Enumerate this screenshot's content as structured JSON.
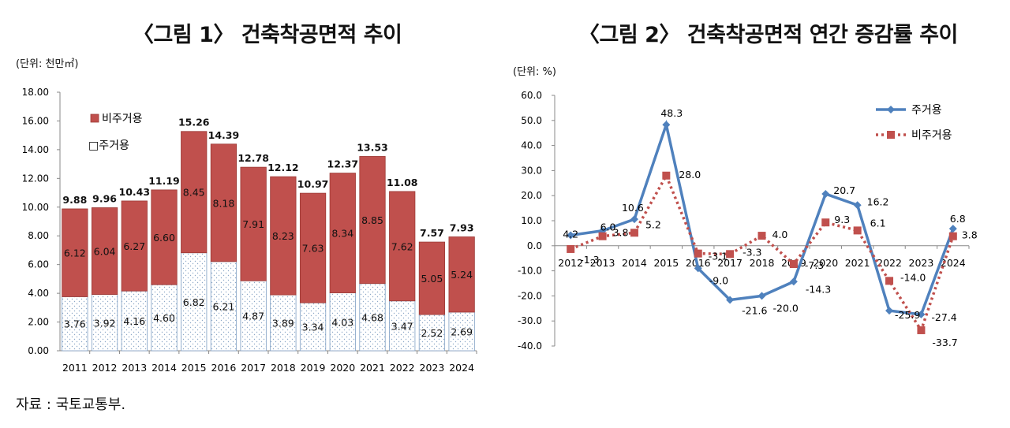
{
  "titles": {
    "chart1": "〈그림 1〉 건축착공면적 추이",
    "chart2": "〈그림 2〉 건축착공면적 연간 증감률 추이"
  },
  "units": {
    "chart1": "(단위: 천만㎡)",
    "chart2": "(단위: %)"
  },
  "source": "자료 : 국토교통부.",
  "colors": {
    "non_residential": "#c0504d",
    "residential_dots": "#8ea9c8",
    "residential_line": "#4f81bd",
    "non_residential_line": "#c0504d"
  },
  "chart_data": [
    {
      "type": "bar",
      "stacked": true,
      "title": "〈그림 1〉 건축착공면적 추이",
      "ylabel": "(단위: 천만㎡)",
      "categories": [
        "2011",
        "2012",
        "2013",
        "2014",
        "2015",
        "2016",
        "2017",
        "2018",
        "2019",
        "2020",
        "2021",
        "2022",
        "2023",
        "2024"
      ],
      "series": [
        {
          "name": "주거용",
          "values": [
            3.76,
            3.92,
            4.16,
            4.6,
            6.82,
            6.21,
            4.87,
            3.89,
            3.34,
            4.03,
            4.68,
            3.47,
            2.52,
            2.69
          ]
        },
        {
          "name": "비주거용",
          "values": [
            6.12,
            6.04,
            6.27,
            6.6,
            8.45,
            8.18,
            7.91,
            8.23,
            7.63,
            8.34,
            8.85,
            7.62,
            5.05,
            5.24
          ]
        }
      ],
      "totals": [
        9.88,
        9.96,
        10.43,
        11.19,
        15.26,
        14.39,
        12.78,
        12.12,
        10.97,
        12.37,
        13.53,
        11.08,
        7.57,
        7.93
      ],
      "value_labels": {
        "주거용": [
          "3.76",
          "3.92",
          "4.16",
          "4.60",
          "6.82",
          "6.21",
          "4.87",
          "3.89",
          "3.34",
          "4.03",
          "4.68",
          "3.47",
          "2.52",
          "2.69"
        ],
        "비주거용": [
          "6.12",
          "6.04",
          "6.27",
          "6.60",
          "8.45",
          "8.18",
          "7.91",
          "8.23",
          "7.63",
          "8.34",
          "8.85",
          "7.62",
          "5.05",
          "5.24"
        ],
        "totals": [
          "9.88",
          "9.96",
          "10.43",
          "11.19",
          "15.26",
          "14.39",
          "12.78",
          "12.12",
          "10.97",
          "12.37",
          "13.53",
          "11.08",
          "7.57",
          "7.93"
        ]
      },
      "yticks": [
        "0.00",
        "2.00",
        "4.00",
        "6.00",
        "8.00",
        "10.00",
        "12.00",
        "14.00",
        "16.00",
        "18.00"
      ],
      "ylim": [
        0,
        18
      ],
      "legend": [
        "비주거용",
        "□주거용"
      ],
      "legend_position": "top-left",
      "grid": false
    },
    {
      "type": "line",
      "title": "〈그림 2〉 건축착공면적 연간 증감률 추이",
      "ylabel": "(단위: %)",
      "categories": [
        "2012",
        "2013",
        "2014",
        "2015",
        "2016",
        "2017",
        "2018",
        "2019",
        "2020",
        "2021",
        "2022",
        "2023",
        "2024"
      ],
      "series": [
        {
          "name": "주거용",
          "values": [
            4.2,
            6.0,
            10.6,
            48.3,
            -9.0,
            -21.6,
            -20.0,
            -14.3,
            20.7,
            16.2,
            -25.9,
            -27.4,
            6.8
          ],
          "labels": [
            "4.2",
            "6.0",
            "10.6",
            "48.3",
            "-9.0",
            "-21.6",
            "-20.0",
            "-14.3",
            "20.7",
            "16.2",
            "-25.9",
            "-27.4",
            "6.8"
          ]
        },
        {
          "name": "비주거용",
          "values": [
            -1.3,
            3.8,
            5.2,
            28.0,
            -3.1,
            -3.3,
            4.0,
            -7.3,
            9.3,
            6.1,
            -14.0,
            -33.7,
            3.8
          ],
          "labels": [
            "-1.3",
            "3.8",
            "5.2",
            "28.0",
            "-3.1",
            "-3.3",
            "4.0",
            "-7.3",
            "9.3",
            "6.1",
            "-14.0",
            "-33.7",
            "3.8"
          ]
        }
      ],
      "yticks": [
        "-40.0",
        "-30.0",
        "-20.0",
        "-10.0",
        "0.0",
        "10.0",
        "20.0",
        "30.0",
        "40.0",
        "50.0",
        "60.0"
      ],
      "ylim": [
        -40,
        60
      ],
      "legend": [
        "주거용",
        "비주거용"
      ],
      "legend_position": "top-right",
      "grid": false
    }
  ]
}
